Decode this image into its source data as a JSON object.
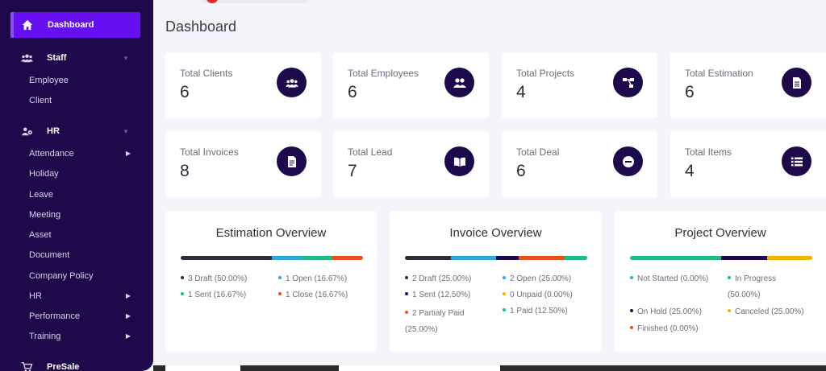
{
  "sidebar": {
    "active": {
      "label": "Dashboard"
    },
    "sections": [
      {
        "label": "Staff",
        "items": [
          {
            "label": "Employee"
          },
          {
            "label": "Client"
          }
        ]
      },
      {
        "label": "HR",
        "items": [
          {
            "label": "Attendance",
            "arrow": true
          },
          {
            "label": "Holiday"
          },
          {
            "label": "Leave"
          },
          {
            "label": "Meeting"
          },
          {
            "label": "Asset"
          },
          {
            "label": "Document"
          },
          {
            "label": "Company Policy"
          },
          {
            "label": "HR",
            "arrow": true
          },
          {
            "label": "Performance",
            "arrow": true
          },
          {
            "label": "Training",
            "arrow": true
          }
        ]
      },
      {
        "label": "PreSale"
      }
    ]
  },
  "header": {
    "title": "Dashboard"
  },
  "stats": [
    {
      "label": "Total Clients",
      "value": "6",
      "icon": "users-icon"
    },
    {
      "label": "Total Employees",
      "value": "6",
      "icon": "user-group-icon"
    },
    {
      "label": "Total Projects",
      "value": "4",
      "icon": "sitemap-icon"
    },
    {
      "label": "Total Estimation",
      "value": "6",
      "icon": "file-icon"
    },
    {
      "label": "Total Invoices",
      "value": "8",
      "icon": "invoice-icon"
    },
    {
      "label": "Total Lead",
      "value": "7",
      "icon": "book-open-icon"
    },
    {
      "label": "Total Deal",
      "value": "6",
      "icon": "minus-circle-icon"
    },
    {
      "label": "Total Items",
      "value": "4",
      "icon": "list-icon"
    }
  ],
  "overviews": {
    "estimation": {
      "title": "Estimation Overview",
      "segments": [
        {
          "label": "3 Draft (50.00%)",
          "percent": 50,
          "color": "#2d2d3a"
        },
        {
          "label": "1 Open (16.67%)",
          "percent": 16.67,
          "color": "#2ea8d8"
        },
        {
          "label": "1 Sent (16.67%)",
          "percent": 16.67,
          "color": "#1ebc80"
        },
        {
          "label": "1 Close (16.67%)",
          "percent": 16.67,
          "color": "#e8501e"
        }
      ]
    },
    "invoice": {
      "title": "Invoice Overview",
      "segments": [
        {
          "label": "2 Draft (25.00%)",
          "percent": 25,
          "color": "#2d2d3a"
        },
        {
          "label": "2 Open (25.00%)",
          "percent": 25,
          "color": "#2ea8d8"
        },
        {
          "label": "1 Sent (12.50%)",
          "percent": 12.5,
          "color": "#1e0a4a"
        },
        {
          "label": "0 Unpaid (0.00%)",
          "percent": 0,
          "color": "#f0b400"
        },
        {
          "label": "2 Partialy Paid (25.00%)",
          "percent": 25,
          "color": "#e8501e"
        },
        {
          "label": "1 Paid (12.50%)",
          "percent": 12.5,
          "color": "#1ebc80"
        }
      ]
    },
    "project": {
      "title": "Project Overview",
      "segments": [
        {
          "label": "Not Started (0.00%)",
          "percent": 0,
          "color": "#2ea8d8"
        },
        {
          "label": "In Progress (50.00%)",
          "percent": 50,
          "color": "#1ebc80"
        },
        {
          "label": "On Hold (25.00%)",
          "percent": 25,
          "color": "#1e0a4a"
        },
        {
          "label": "Canceled (25.00%)",
          "percent": 25,
          "color": "#f0b400"
        },
        {
          "label": "Finished (0.00%)",
          "percent": 0,
          "color": "#e8501e"
        }
      ]
    }
  }
}
